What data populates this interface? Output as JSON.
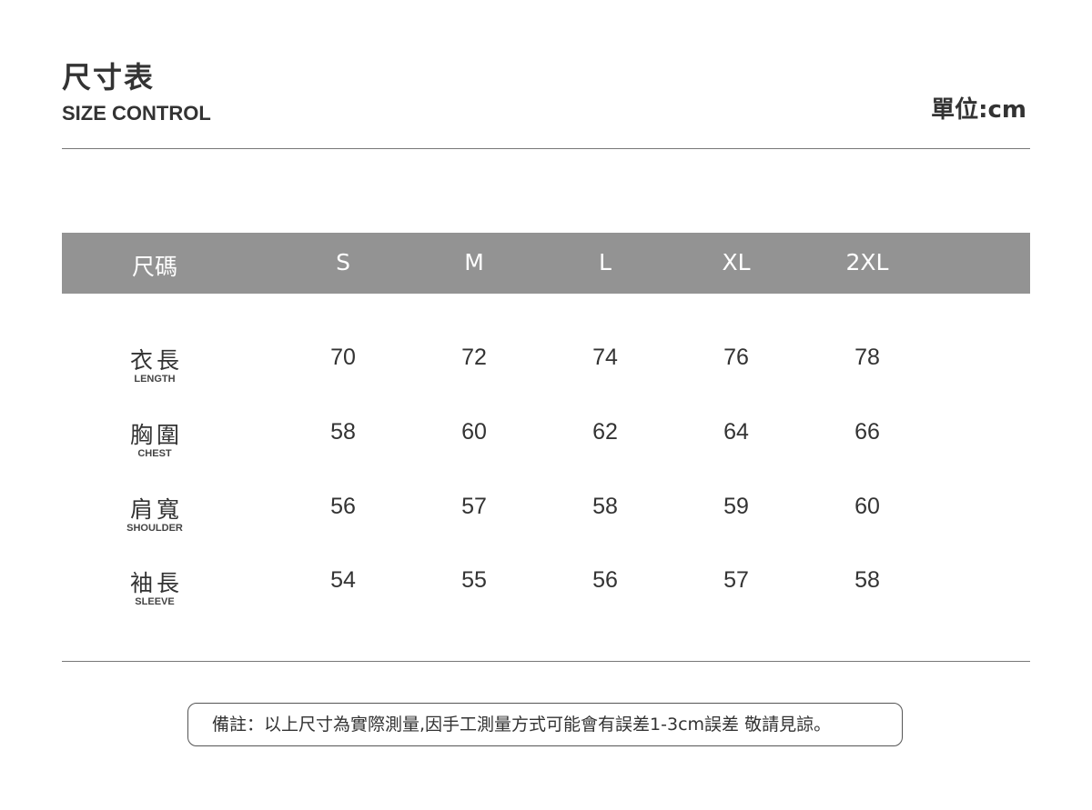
{
  "header": {
    "title": "尺寸表",
    "subtitle": "SIZE CONTROL",
    "unit": "單位:cm"
  },
  "table": {
    "header_label": "尺碼",
    "sizes": [
      "S",
      "M",
      "L",
      "XL",
      "2XL"
    ],
    "header_color": "#939393",
    "rows": [
      {
        "label": "衣長",
        "sublabel": "LENGTH",
        "values": [
          "70",
          "72",
          "74",
          "76",
          "78"
        ]
      },
      {
        "label": "胸圍",
        "sublabel": "CHEST",
        "values": [
          "58",
          "60",
          "62",
          "64",
          "66"
        ]
      },
      {
        "label": "肩寬",
        "sublabel": "SHOULDER",
        "values": [
          "56",
          "57",
          "58",
          "59",
          "60"
        ]
      },
      {
        "label": "袖長",
        "sublabel": "SLEEVE",
        "values": [
          "54",
          "55",
          "56",
          "57",
          "58"
        ]
      }
    ]
  },
  "note": "備註：以上尺寸為實際測量,因手工測量方式可能會有誤差1-3cm誤差 敬請見諒。"
}
